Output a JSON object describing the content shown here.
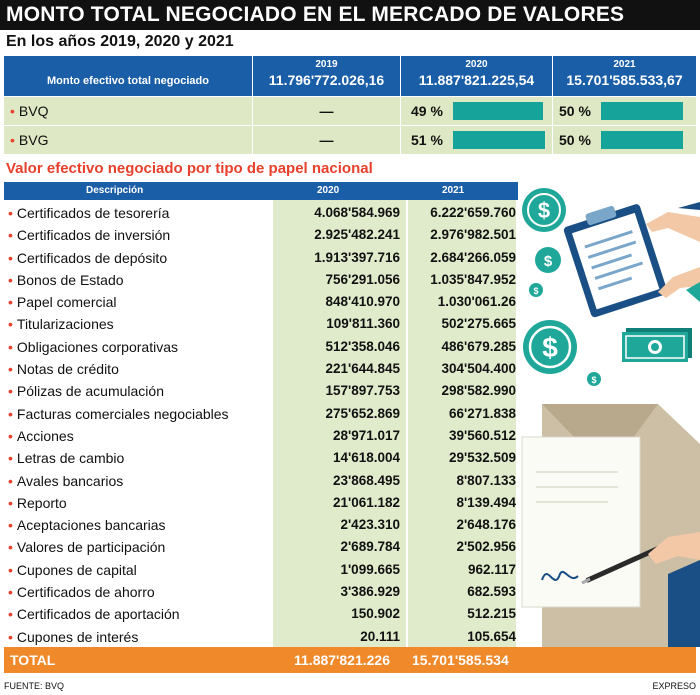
{
  "header": {
    "title": "MONTO TOTAL NEGOCIADO EN EL MERCADO DE VALORES",
    "subtitle": "En los años 2019, 2020 y 2021"
  },
  "summary": {
    "label": "Monto efectivo total negociado",
    "years": [
      {
        "year": "2019",
        "value": "11.796'772.026,16"
      },
      {
        "year": "2020",
        "value": "11.887'821.225,54"
      },
      {
        "year": "2021",
        "value": "15.701'585.533,67"
      }
    ],
    "rows": [
      {
        "name": "BVQ",
        "v2019": "—",
        "p2020": "49 %",
        "f2020": 0.49,
        "p2021": "50 %",
        "f2021": 0.5
      },
      {
        "name": "BVG",
        "v2019": "—",
        "p2020": "51 %",
        "f2020": 0.51,
        "p2021": "50 %",
        "f2021": 0.5
      }
    ]
  },
  "chart_data": {
    "type": "table",
    "title": "Valor efectivo negociado por tipo de papel nacional",
    "columns": [
      "Descripción",
      "2020",
      "2021"
    ],
    "rows": [
      [
        "Certificados de tesorería",
        "4.068'584.969",
        "6.222'659.760"
      ],
      [
        "Certificados de inversión",
        "2.925'482.241",
        "2.976'982.501"
      ],
      [
        "Certificados de depósito",
        "1.913'397.716",
        "2.684'266.059"
      ],
      [
        "Bonos de Estado",
        "756'291.056",
        "1.035'847.952"
      ],
      [
        "Papel comercial",
        "848'410.970",
        "1.030'061.26"
      ],
      [
        "Titularizaciones",
        "109'811.360",
        "502'275.665"
      ],
      [
        "Obligaciones corporativas",
        "512'358.046",
        "486'679.285"
      ],
      [
        "Notas de crédito",
        "221'644.845",
        "304'504.400"
      ],
      [
        "Pólizas de acumulación",
        "157'897.753",
        "298'582.990"
      ],
      [
        "Facturas comerciales negociables",
        "275'652.869",
        "66'271.838"
      ],
      [
        "Acciones",
        "28'971.017",
        "39'560.512"
      ],
      [
        "Letras de cambio",
        "14'618.004",
        "29'532.509"
      ],
      [
        "Avales bancarios",
        "23'868.495",
        "8'807.133"
      ],
      [
        "Reporto",
        "21'061.182",
        "8'139.494"
      ],
      [
        "Aceptaciones bancarias",
        "2'423.310",
        "2'648.176"
      ],
      [
        "Valores de participación",
        "2'689.784",
        "2'502.956"
      ],
      [
        "Cupones de capital",
        "1'099.665",
        "962.117"
      ],
      [
        "Certificados de ahorro",
        "3'386.929",
        "682.593"
      ],
      [
        "Certificados de aportación",
        "150.902",
        "512.215"
      ],
      [
        "Cupones de interés",
        "20.111",
        "105.654"
      ]
    ],
    "total": {
      "label": "TOTAL",
      "v2020": "11.887'821.226",
      "v2021": "15.701'585.534"
    }
  },
  "footer": {
    "source": "FUENTE: BVQ",
    "credit": "EXPRESO"
  },
  "colors": {
    "header_blue": "#1a5ea8",
    "bar_teal": "#16a39a",
    "accent_red": "#e8402c",
    "total_orange": "#f0892a",
    "cell_green": "#e0ebcc"
  },
  "icons": [
    "dollar-coin-icon",
    "document-clipboard-icon",
    "banknote-icon",
    "envelope-letter-icon",
    "pen-icon"
  ]
}
